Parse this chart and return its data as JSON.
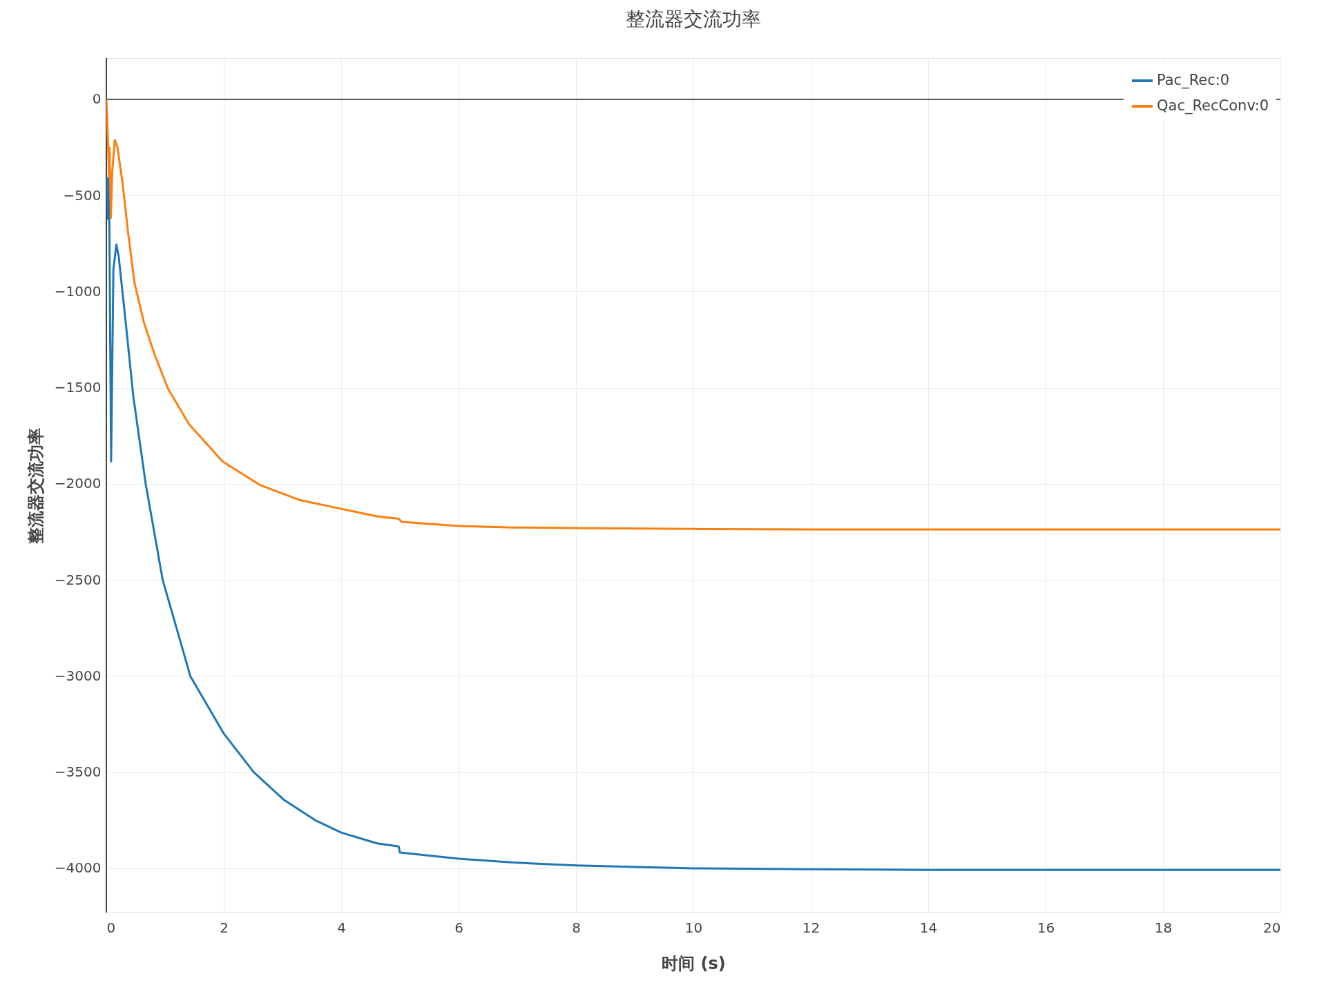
{
  "chart_data": {
    "type": "line",
    "title": "整流器交流功率",
    "xlabel": "时间 (s)",
    "ylabel": "整流器交流功率",
    "xlim": [
      0,
      20
    ],
    "ylim": [
      -4230,
      215
    ],
    "xticks": [
      0,
      2,
      4,
      6,
      8,
      10,
      12,
      14,
      16,
      18,
      20
    ],
    "yticks": [
      0,
      {
        "value": -500,
        "label": "−500"
      },
      {
        "value": -1000,
        "label": "−1000"
      },
      {
        "value": -1500,
        "label": "−1500"
      },
      {
        "value": -2000,
        "label": "−2000"
      },
      {
        "value": -2500,
        "label": "−2500"
      },
      {
        "value": -3000,
        "label": "−3000"
      },
      {
        "value": -3500,
        "label": "−3500"
      },
      {
        "value": -4000,
        "label": "−4000"
      }
    ],
    "grid": true,
    "legend": "top right",
    "line_style": "solid",
    "marker": "none",
    "ref_lines": [
      {
        "axis": "y",
        "value": 0,
        "color": "#222222",
        "line_style": "solid"
      }
    ],
    "series": [
      {
        "name": "Pac_Rec:0",
        "color": "#1f77b4",
        "x": [
          0,
          0.01,
          0.03,
          0.045,
          0.081,
          0.12,
          0.17,
          0.21,
          0.33,
          0.46,
          0.67,
          0.96,
          1.43,
          2,
          2.51,
          3.03,
          3.56,
          4,
          4.61,
          4.98,
          5.0,
          6,
          6.94,
          8,
          10,
          12,
          14,
          16,
          18,
          20
        ],
        "values": [
          -420,
          -410,
          -624,
          -404,
          -1884,
          -886,
          -755,
          -817,
          -1161,
          -1547,
          -2000,
          -2500,
          -3000,
          -3299,
          -3500,
          -3645,
          -3750,
          -3814,
          -3870,
          -3886,
          -3918,
          -3950,
          -3970,
          -3985,
          -4000,
          -4005,
          -4008,
          -4008,
          -4008,
          -4008
        ]
      },
      {
        "name": "Qac_RecConv:0",
        "color": "#ff7f0e",
        "x": [
          0,
          0.03,
          0.045,
          0.054,
          0.077,
          0.1,
          0.145,
          0.19,
          0.28,
          0.37,
          0.48,
          0.64,
          0.82,
          1.05,
          1.41,
          1.98,
          2.61,
          3.3,
          4,
          4.61,
          4.98,
          5.03,
          6,
          6.94,
          8,
          10,
          12,
          14,
          16,
          18,
          20
        ],
        "values": [
          0,
          -238,
          -404,
          -252,
          -617,
          -376,
          -211,
          -252,
          -445,
          -693,
          -955,
          -1161,
          -1326,
          -1505,
          -1691,
          -1884,
          -2005,
          -2085,
          -2130,
          -2169,
          -2182,
          -2198,
          -2219,
          -2227,
          -2230,
          -2235,
          -2237,
          -2237,
          -2237,
          -2237,
          -2237
        ]
      }
    ]
  }
}
